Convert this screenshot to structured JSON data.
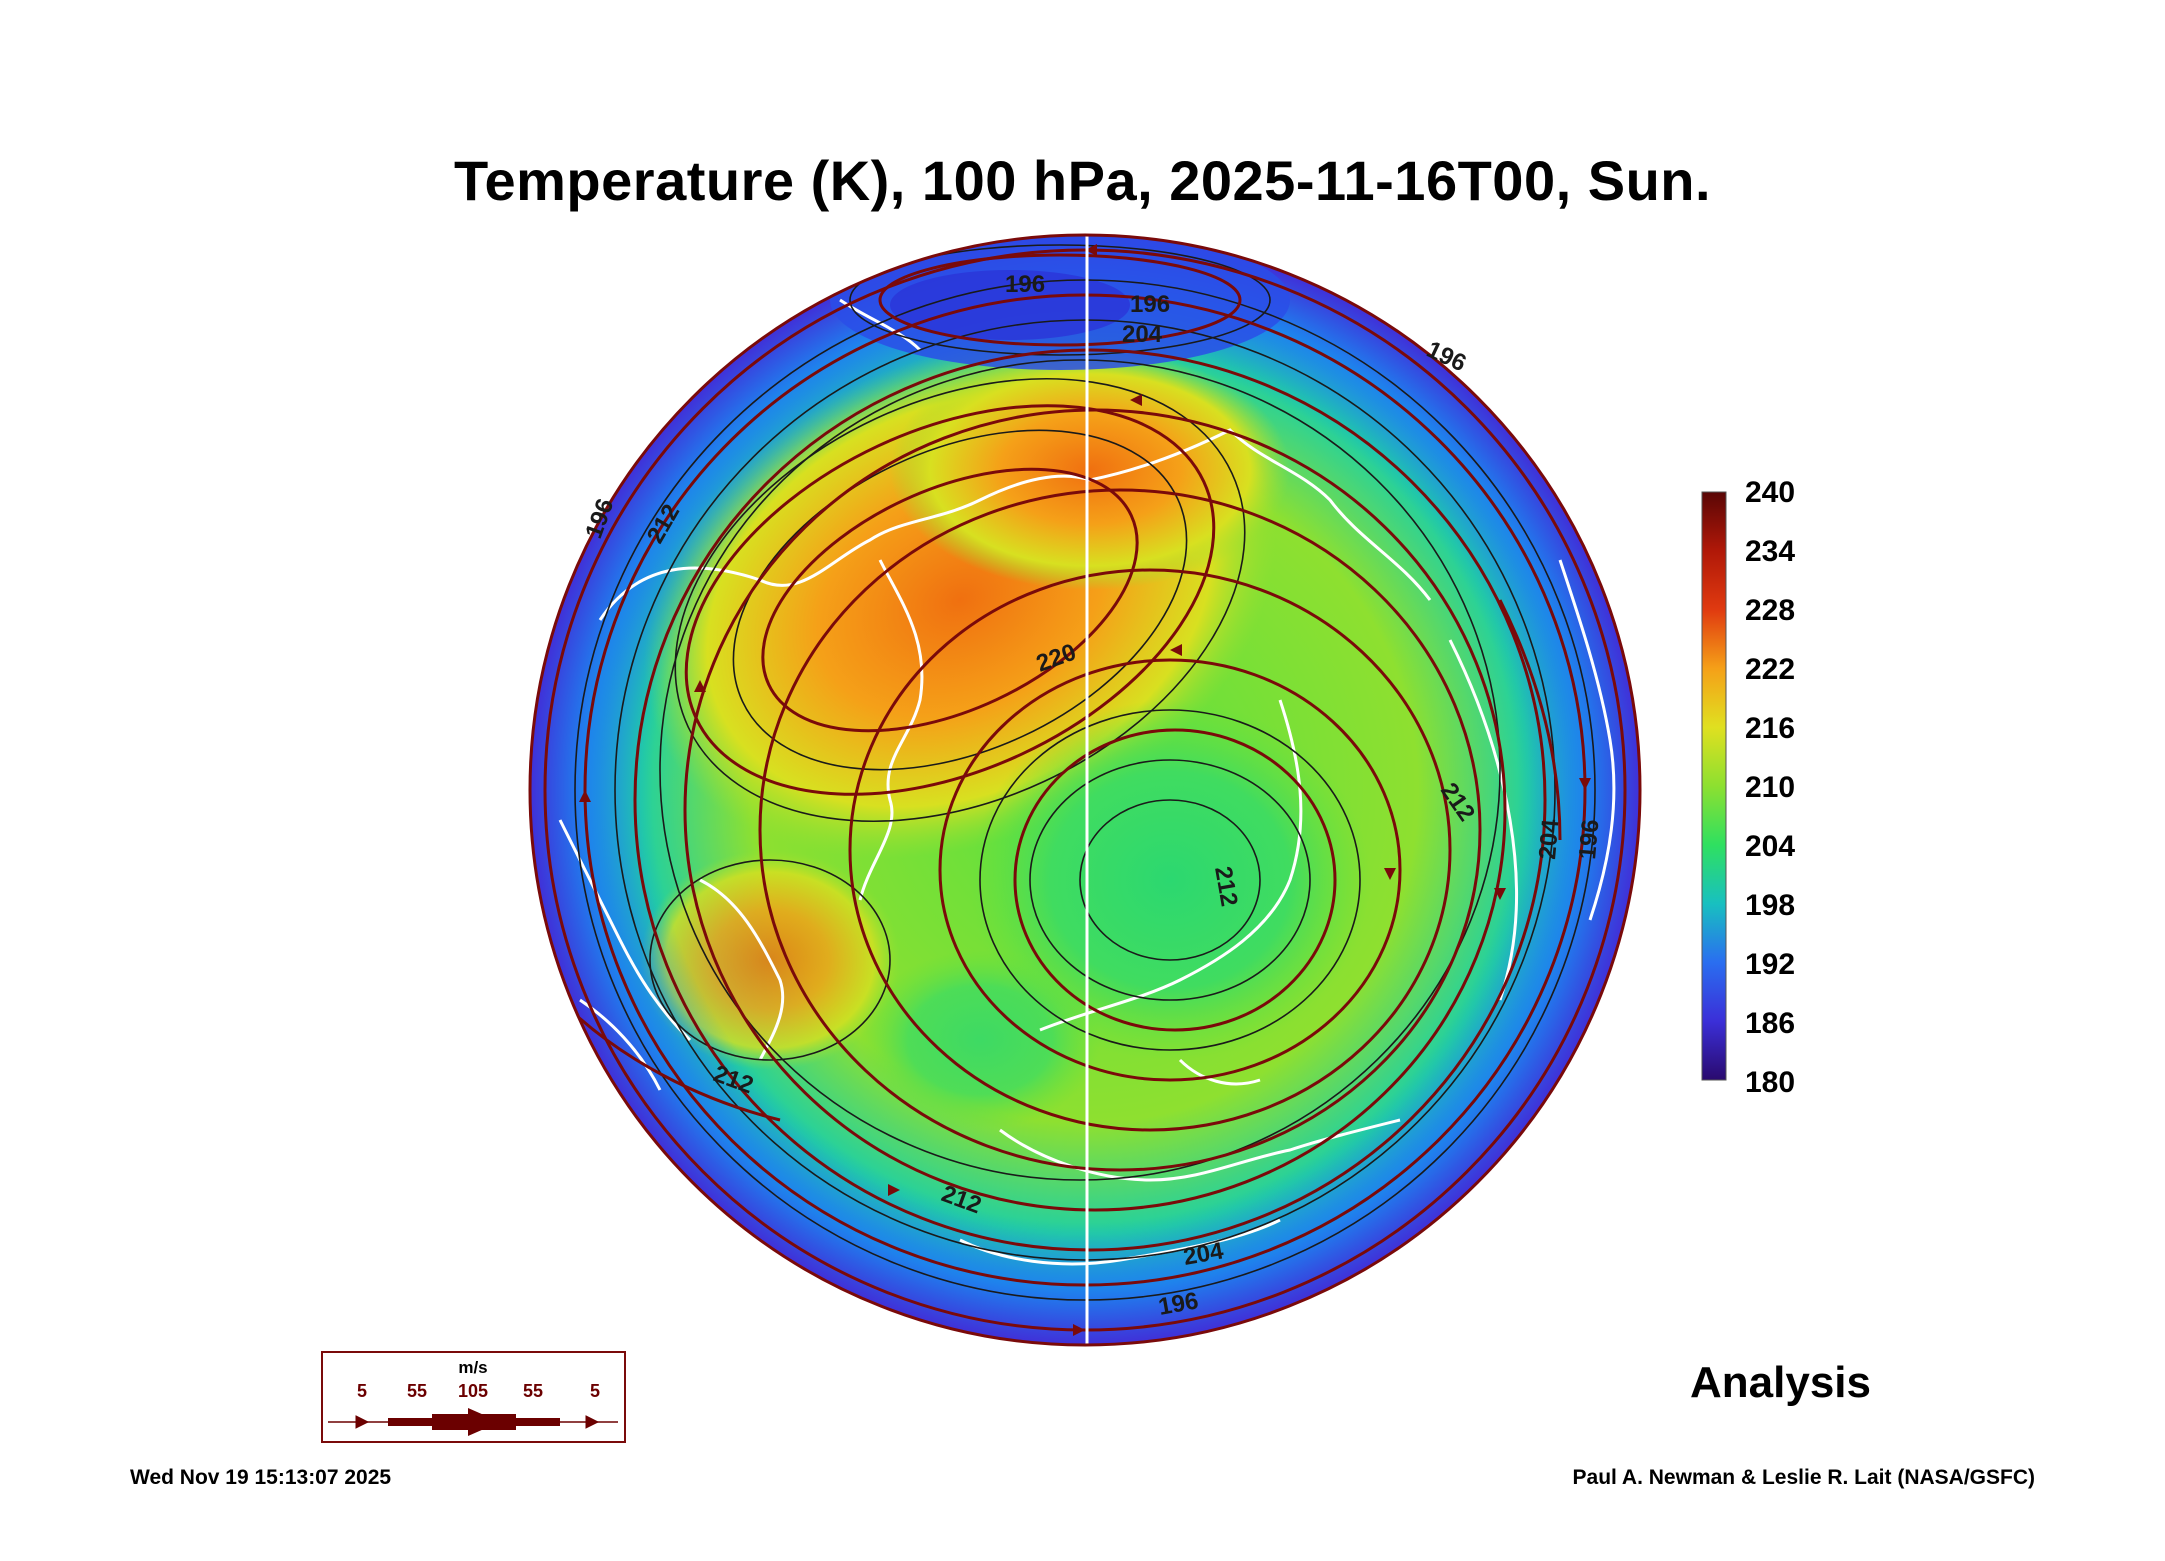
{
  "title": "Temperature (K), 100 hPa, 2025-11-16T00, Sun.",
  "analysis_label": "Analysis",
  "timestamp": "Wed Nov 19 15:13:07 2025",
  "credit": "Paul A. Newman & Leslie R. Lait (NASA/GSFC)",
  "colorbar": {
    "min": 180,
    "max": 240,
    "ticks": [
      "240",
      "234",
      "228",
      "222",
      "216",
      "210",
      "204",
      "198",
      "192",
      "186",
      "180"
    ],
    "colors": [
      "#2a0a6e",
      "#3b2fd8",
      "#2a6ef0",
      "#1ea9e8",
      "#18d0a0",
      "#2fe060",
      "#8de030",
      "#e0e020",
      "#f5b018",
      "#f06a10",
      "#b01808",
      "#5a0606"
    ]
  },
  "contour_labels": [
    "196",
    "196",
    "204",
    "212",
    "220",
    "196",
    "212",
    "212",
    "212",
    "204",
    "196",
    "212",
    "196",
    "204",
    "196"
  ],
  "wind_legend": {
    "unit": "m/s",
    "values": [
      "5",
      "55",
      "105",
      "55",
      "5"
    ]
  },
  "colors": {
    "stream": "#7a0a0a",
    "coast": "#ffffff",
    "contour": "#1a1a1a"
  }
}
